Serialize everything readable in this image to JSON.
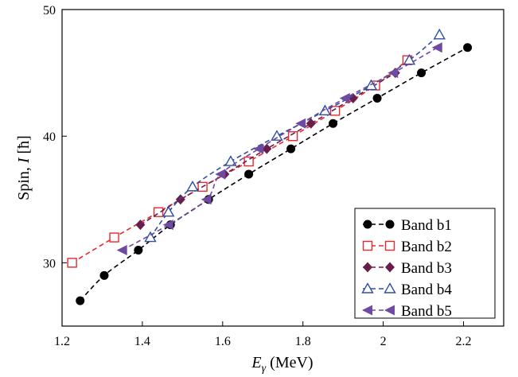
{
  "chart_data": {
    "type": "scatter",
    "xlabel_main": "E",
    "xlabel_sub": "γ",
    "xlabel_unit": " (MeV)",
    "ylabel": "Spin, I [ħ]",
    "ylabel_prefix": "Spin, ",
    "ylabel_var": "I",
    "ylabel_unit": " [ħ]",
    "xlim": [
      1.2,
      2.3
    ],
    "ylim": [
      25,
      50
    ],
    "x_ticks": [
      1.2,
      1.4,
      1.6,
      1.8,
      2.0,
      2.2
    ],
    "x_tick_labels": [
      "1.2",
      "1.4",
      "1.6",
      "1.8",
      "2",
      "2.2"
    ],
    "y_ticks": [
      30,
      40,
      50
    ],
    "y_tick_labels": [
      "30",
      "40",
      "50"
    ],
    "grid": false,
    "legend_position": "bottom-right",
    "series": [
      {
        "name": "Band b1",
        "marker": "circle-filled",
        "color": "#000000",
        "points": [
          [
            1.245,
            27
          ],
          [
            1.305,
            29
          ],
          [
            1.39,
            31
          ],
          [
            1.47,
            33
          ],
          [
            1.565,
            35
          ],
          [
            1.665,
            37
          ],
          [
            1.77,
            39
          ],
          [
            1.875,
            41
          ],
          [
            1.985,
            43
          ],
          [
            2.095,
            45
          ],
          [
            2.21,
            47
          ]
        ]
      },
      {
        "name": "Band b2",
        "marker": "square-open",
        "color": "#e8282c",
        "points": [
          [
            1.225,
            30
          ],
          [
            1.33,
            32
          ],
          [
            1.44,
            34
          ],
          [
            1.55,
            36
          ],
          [
            1.665,
            38
          ],
          [
            1.775,
            40
          ],
          [
            1.88,
            42
          ],
          [
            1.98,
            44
          ],
          [
            2.06,
            46
          ]
        ]
      },
      {
        "name": "Band b3",
        "marker": "diamond-filled",
        "color": "#6b1d4a",
        "points": [
          [
            1.395,
            33
          ],
          [
            1.495,
            35
          ],
          [
            1.605,
            37
          ],
          [
            1.71,
            39
          ],
          [
            1.82,
            41
          ],
          [
            1.925,
            43
          ],
          [
            2.03,
            45
          ]
        ]
      },
      {
        "name": "Band b4",
        "marker": "triangle-open",
        "color": "#2f4ea1",
        "points": [
          [
            1.42,
            32
          ],
          [
            1.465,
            34
          ],
          [
            1.525,
            36
          ],
          [
            1.62,
            38
          ],
          [
            1.735,
            40
          ],
          [
            1.855,
            42
          ],
          [
            1.97,
            44
          ],
          [
            2.065,
            46
          ],
          [
            2.14,
            48
          ]
        ]
      },
      {
        "name": "Band b5",
        "marker": "triangle-left-filled",
        "color": "#6f4aa1",
        "points": [
          [
            1.35,
            31
          ],
          [
            1.465,
            33
          ],
          [
            1.56,
            35
          ],
          [
            1.595,
            37
          ],
          [
            1.69,
            39
          ],
          [
            1.795,
            41
          ],
          [
            1.905,
            43
          ],
          [
            2.025,
            45
          ],
          [
            2.135,
            47
          ]
        ]
      }
    ]
  }
}
